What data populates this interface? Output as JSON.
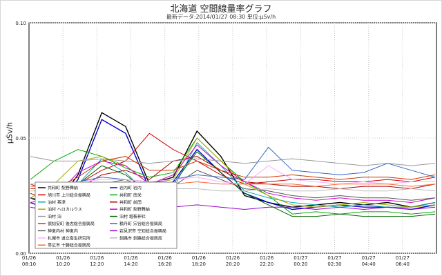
{
  "chart_data": {
    "type": "line",
    "title": "北海道 空間線量率グラフ",
    "subtitle": "最新データ:2014/01/27 08:30 単位:μSv/h",
    "ylabel": "μSv/h",
    "ylim": [
      0,
      0.1
    ],
    "yticks": [
      "0.00",
      "0.05",
      "0.10"
    ],
    "grid": true,
    "legend_position": "lower-left",
    "xticks": [
      {
        "date": "01/26",
        "time": "08:10"
      },
      {
        "date": "01/26",
        "time": "10:20"
      },
      {
        "date": "01/26",
        "time": "12:20"
      },
      {
        "date": "01/26",
        "time": "14:20"
      },
      {
        "date": "01/26",
        "time": "16:20"
      },
      {
        "date": "01/26",
        "time": "18:20"
      },
      {
        "date": "01/26",
        "time": "20:20"
      },
      {
        "date": "01/26",
        "time": "22:20"
      },
      {
        "date": "01/27",
        "time": "00:20"
      },
      {
        "date": "01/27",
        "time": "02:30"
      },
      {
        "date": "01/27",
        "time": "04:40"
      },
      {
        "date": "01/27",
        "time": "06:40"
      }
    ],
    "series": [
      {
        "name": "共和町 梨野舞納",
        "color": "#000000",
        "values": [
          0.024,
          0.02,
          0.034,
          0.061,
          0.055,
          0.03,
          0.033,
          0.053,
          0.042,
          0.025,
          0.022,
          0.02,
          0.021,
          0.022,
          0.021,
          0.022,
          0.02,
          0.022
        ]
      },
      {
        "name": "岩内町 岩内",
        "color": "#0000cc",
        "values": [
          0.022,
          0.018,
          0.032,
          0.058,
          0.052,
          0.028,
          0.031,
          0.045,
          0.035,
          0.026,
          0.022,
          0.019,
          0.02,
          0.021,
          0.02,
          0.02,
          0.019,
          0.021
        ]
      },
      {
        "name": "旭川市 上川総合振興局",
        "color": "#cc0000",
        "values": [
          0.03,
          0.026,
          0.03,
          0.036,
          0.04,
          0.052,
          0.045,
          0.04,
          0.034,
          0.03,
          0.031,
          0.032,
          0.032,
          0.031,
          0.031,
          0.032,
          0.031,
          0.033
        ]
      },
      {
        "name": "共和町 南栄",
        "color": "#00aa00",
        "values": [
          0.032,
          0.04,
          0.045,
          0.042,
          0.037,
          0.033,
          0.035,
          0.05,
          0.04,
          0.031,
          0.025,
          0.017,
          0.018,
          0.017,
          0.018,
          0.018,
          0.017,
          0.018
        ]
      },
      {
        "name": "泊村 茶津",
        "color": "#00aaaa",
        "values": [
          0.02,
          0.018,
          0.03,
          0.041,
          0.035,
          0.025,
          0.028,
          0.048,
          0.038,
          0.027,
          0.024,
          0.022,
          0.021,
          0.02,
          0.021,
          0.02,
          0.02,
          0.022
        ]
      },
      {
        "name": "共和町 前田",
        "color": "#aa0000",
        "values": [
          0.026,
          0.022,
          0.028,
          0.034,
          0.036,
          0.032,
          0.04,
          0.042,
          0.036,
          0.031,
          0.03,
          0.029,
          0.029,
          0.028,
          0.029,
          0.029,
          0.028,
          0.03
        ]
      },
      {
        "name": "泊村 ヘロカルウス",
        "color": "#aaaa00",
        "values": [
          0.024,
          0.03,
          0.04,
          0.042,
          0.038,
          0.03,
          0.032,
          0.05,
          0.04,
          0.03,
          0.025,
          0.021,
          0.02,
          0.021,
          0.022,
          0.021,
          0.02,
          0.021
        ]
      },
      {
        "name": "共和町 梨野舞納",
        "color": "#cc00cc",
        "values": [
          0.022,
          0.024,
          0.035,
          0.04,
          0.038,
          0.03,
          0.034,
          0.047,
          0.038,
          0.031,
          0.026,
          0.024,
          0.023,
          0.024,
          0.023,
          0.023,
          0.022,
          0.024
        ]
      },
      {
        "name": "泊村 泊",
        "color": "#999999",
        "values": [
          0.042,
          0.04,
          0.04,
          0.041,
          0.04,
          0.039,
          0.04,
          0.041,
          0.04,
          0.039,
          0.04,
          0.041,
          0.04,
          0.039,
          0.038,
          0.039,
          0.038,
          0.039
        ]
      },
      {
        "name": "泊村 堀株神社",
        "color": "#006600",
        "values": [
          0.024,
          0.022,
          0.03,
          0.038,
          0.034,
          0.026,
          0.03,
          0.044,
          0.035,
          0.026,
          0.021,
          0.016,
          0.016,
          0.017,
          0.016,
          0.016,
          0.016,
          0.017
        ]
      },
      {
        "name": "倶知安町 後志総合振興局",
        "color": "#cc3300",
        "values": [
          0.028,
          0.028,
          0.033,
          0.04,
          0.042,
          0.036,
          0.036,
          0.04,
          0.036,
          0.033,
          0.033,
          0.034,
          0.033,
          0.032,
          0.033,
          0.033,
          0.032,
          0.034
        ]
      },
      {
        "name": "積丹町 宗谷総合振興局",
        "color": "#3366cc",
        "values": [
          0.03,
          0.03,
          0.031,
          0.033,
          0.032,
          0.031,
          0.032,
          0.034,
          0.033,
          0.032,
          0.046,
          0.036,
          0.035,
          0.034,
          0.035,
          0.039,
          0.036,
          0.033
        ]
      },
      {
        "name": "神恵内村 神恵内",
        "color": "#555555",
        "values": [
          0.024,
          0.022,
          0.026,
          0.03,
          0.032,
          0.027,
          0.029,
          0.036,
          0.032,
          0.028,
          0.027,
          0.025,
          0.024,
          0.025,
          0.024,
          0.024,
          0.023,
          0.024
        ]
      },
      {
        "name": "岩見沢市 空知総合振興局",
        "color": "#9900cc",
        "values": [
          0.02,
          0.018,
          0.019,
          0.02,
          0.02,
          0.019,
          0.02,
          0.021,
          0.02,
          0.019,
          0.02,
          0.02,
          0.019,
          0.02,
          0.019,
          0.02,
          0.019,
          0.02
        ]
      },
      {
        "name": "札幌市 道立衛生研究所",
        "color": "#ffaaff",
        "values": [
          0.03,
          0.03,
          0.031,
          0.032,
          0.032,
          0.031,
          0.032,
          0.033,
          0.031,
          0.03,
          0.038,
          0.032,
          0.031,
          0.03,
          0.031,
          0.03,
          0.031,
          0.031
        ]
      },
      {
        "name": "釧路市 釧路総合振興局",
        "color": "#bbbbbb",
        "values": [
          0.027,
          0.027,
          0.027,
          0.028,
          0.028,
          0.027,
          0.028,
          0.028,
          0.027,
          0.027,
          0.028,
          0.027,
          0.027,
          0.028,
          0.027,
          0.027,
          0.028,
          0.027
        ]
      },
      {
        "name": "帯広市 十勝総合振興局",
        "color": "#ff6633",
        "values": [
          0.029,
          0.029,
          0.03,
          0.03,
          0.031,
          0.03,
          0.03,
          0.031,
          0.03,
          0.03,
          0.03,
          0.03,
          0.029,
          0.03,
          0.03,
          0.03,
          0.029,
          0.03
        ]
      }
    ]
  }
}
